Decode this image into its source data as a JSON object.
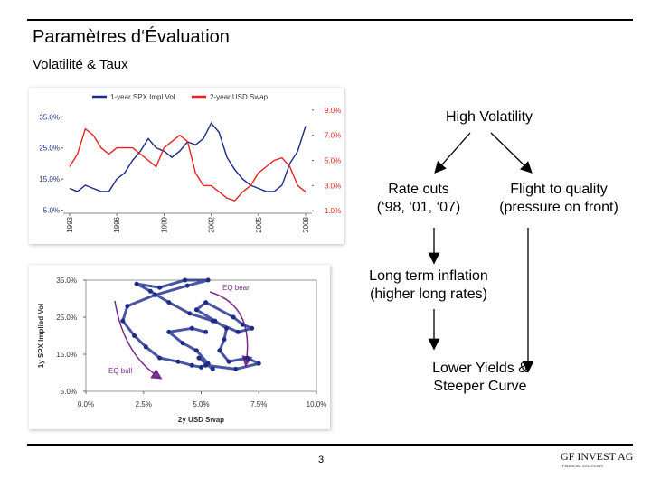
{
  "header": {
    "title": "Paramètres d‘Évaluation",
    "subtitle": "Volatilité & Taux"
  },
  "chart_data": [
    {
      "type": "line",
      "x": [
        1993,
        1993.5,
        1994,
        1994.5,
        1995,
        1995.5,
        1996,
        1996.5,
        1997,
        1997.5,
        1998,
        1998.5,
        1999,
        1999.5,
        2000,
        2000.5,
        2001,
        2001.5,
        2002,
        2002.5,
        2003,
        2003.5,
        2004,
        2004.5,
        2005,
        2005.5,
        2006,
        2006.5,
        2007,
        2007.5,
        2008
      ],
      "series": [
        {
          "name": "1-year SPX Impl Vol",
          "color": "#1c2a8a",
          "values": [
            12,
            11,
            13,
            12,
            11,
            11,
            15,
            17,
            21,
            24,
            28,
            25,
            24,
            22,
            24,
            27,
            26,
            28,
            33,
            30,
            22,
            18,
            15,
            13,
            12,
            11,
            11,
            13,
            20,
            24,
            32
          ]
        },
        {
          "name": "2-year USD Swap",
          "color": "#e8231f",
          "axis": "y2",
          "values": [
            4.5,
            5.5,
            7.5,
            7,
            6,
            5.5,
            6,
            6,
            6,
            5.5,
            5,
            4.5,
            6,
            6.5,
            7,
            6.5,
            4,
            3,
            3,
            2.5,
            2,
            1.8,
            2.5,
            3,
            4,
            4.5,
            5,
            5.2,
            4.5,
            3,
            2.5
          ]
        }
      ],
      "xlim": [
        1992.6,
        2008.4
      ],
      "xticks": [
        1993,
        1996,
        1999,
        2002,
        2005,
        2008
      ],
      "ylim": [
        4,
        38
      ],
      "yticks": [
        {
          "value": 5,
          "label": "5.0%"
        },
        {
          "value": 15,
          "label": "15.0%"
        },
        {
          "value": 25,
          "label": "25.0%"
        },
        {
          "value": 35,
          "label": "35.0%"
        }
      ],
      "y2lim": [
        0.8,
        9.2
      ],
      "y2ticks": [
        {
          "value": 1,
          "label": "1.0%"
        },
        {
          "value": 3,
          "label": "3.0%"
        },
        {
          "value": 5,
          "label": "5.0%"
        },
        {
          "value": 7,
          "label": "7.0%"
        },
        {
          "value": 9,
          "label": "9.0%"
        }
      ]
    },
    {
      "type": "scatter",
      "xlabel": "2y USD Swap",
      "ylabel": "1y SPX Implied Vol",
      "color": "#1c2a8a",
      "x": [
        5.2,
        6.5,
        7.5,
        7,
        6.2,
        5.8,
        6,
        6.1,
        5.6,
        4.8,
        5.2,
        6.4,
        6.8,
        7.2,
        6.6,
        5.5,
        4.5,
        3.6,
        2.8,
        2.2,
        3.2,
        4.3,
        5.3,
        4.4,
        3,
        1.8,
        1.6,
        2.1,
        2.6,
        3.2,
        4,
        4.6,
        5,
        5.3,
        4.9,
        5.5,
        4.8,
        4.2,
        3.6,
        4.6,
        5.2
      ],
      "values": [
        12,
        11,
        12.5,
        14,
        13,
        16,
        19,
        22,
        24,
        27,
        29,
        25,
        23,
        22,
        21,
        24,
        26,
        29,
        32,
        34,
        33,
        35,
        35,
        33.5,
        31,
        28,
        24,
        20,
        17,
        14,
        13,
        12,
        11.5,
        12.5,
        14,
        11,
        16,
        18,
        21,
        22,
        21
      ],
      "xlim": [
        0,
        10
      ],
      "xticks": [
        {
          "value": 0,
          "label": "0.0%"
        },
        {
          "value": 2.5,
          "label": "2.5%"
        },
        {
          "value": 5,
          "label": "5.0%"
        },
        {
          "value": 7.5,
          "label": "7.5%"
        },
        {
          "value": 10,
          "label": "10.0%"
        }
      ],
      "ylim": [
        5,
        35
      ],
      "yticks": [
        {
          "value": 5,
          "label": "5.0%"
        },
        {
          "value": 15,
          "label": "15.0%"
        },
        {
          "value": 25,
          "label": "25.0%"
        },
        {
          "value": 35,
          "label": "35.0%"
        }
      ],
      "annotations": [
        "EQ bear",
        "EQ bull"
      ]
    }
  ],
  "diagram": {
    "nodes": [
      {
        "lines": [
          "High Volatility"
        ]
      },
      {
        "lines": [
          "Rate cuts",
          "(‘98, ‘01, ‘07)"
        ]
      },
      {
        "lines": [
          "Flight to quality",
          "(pressure on front)"
        ]
      },
      {
        "lines": [
          "Long term inflation",
          "(higher long rates)"
        ]
      },
      {
        "lines": [
          "Lower Yields &",
          "Steeper Curve"
        ]
      }
    ]
  },
  "footer": {
    "page": "3",
    "logo": "GF INVEST AG",
    "tagline": "FINANCIAL SOLUTIONS"
  }
}
